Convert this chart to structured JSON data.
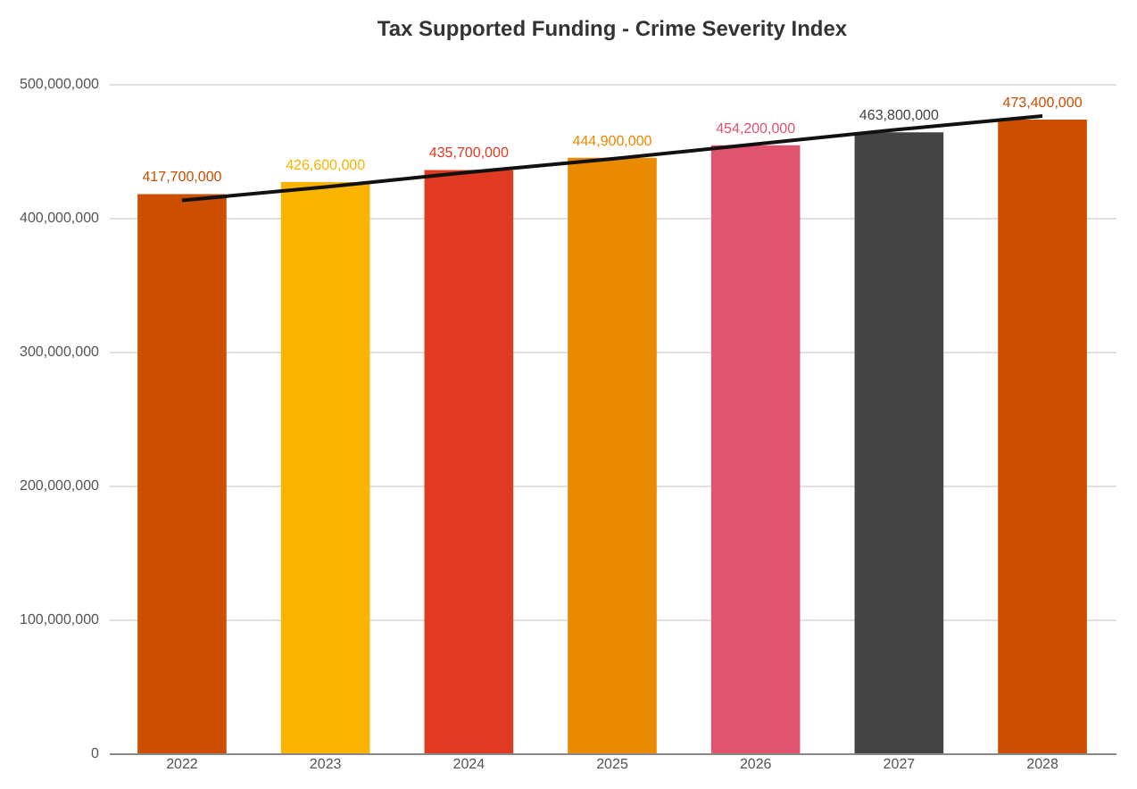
{
  "chart_data": {
    "type": "bar",
    "title": "Tax Supported Funding - Crime Severity Index",
    "categories": [
      "2022",
      "2023",
      "2024",
      "2025",
      "2026",
      "2027",
      "2028"
    ],
    "series": [
      {
        "colors": [
          "#cc4e00",
          "#f9b300",
          "#e03a23",
          "#ea8a00",
          "#e05470",
          "#444444",
          "#cc4e00"
        ],
        "values": [
          417700000,
          426600000,
          435700000,
          444900000,
          454200000,
          463800000,
          473400000
        ],
        "value_labels": [
          "417,700,000",
          "426,600,000",
          "435,700,000",
          "444,900,000",
          "454,200,000",
          "463,800,000",
          "473,400,000"
        ]
      },
      {
        "type": "line",
        "color": "#111111",
        "values": [
          413000000,
          423000000,
          434000000,
          444000000,
          455000000,
          466000000,
          476000000
        ]
      }
    ],
    "ylim": [
      0,
      500000000
    ],
    "yticks": [
      {
        "value": 0,
        "label": "0"
      },
      {
        "value": 100000000,
        "label": "100,000,000"
      },
      {
        "value": 200000000,
        "label": "200,000,000"
      },
      {
        "value": 300000000,
        "label": "300,000,000"
      },
      {
        "value": 400000000,
        "label": "400,000,000"
      },
      {
        "value": 500000000,
        "label": "500,000,000"
      }
    ],
    "grid": "y"
  }
}
